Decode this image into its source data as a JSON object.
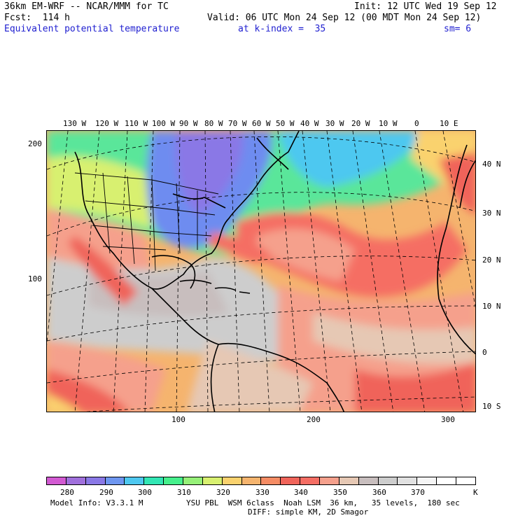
{
  "header": {
    "model": "36km EM-WRF -- NCAR/MMM for TC",
    "init": "Init: 12 UTC Wed 19 Sep 12",
    "fcst": "Fcst:  114 h",
    "valid": "Valid: 06 UTC Mon 24 Sep 12 (00 MDT Mon 24 Sep 12)",
    "field": "Equivalent potential temperature",
    "level": "at k-index =  35",
    "smoothing": "sm= 6"
  },
  "map": {
    "lon_labels": [
      "130 W",
      "120 W",
      "110 W",
      "100 W",
      "90 W",
      "80 W",
      "70 W",
      "60 W",
      "50 W",
      "40 W",
      "30 W",
      "20 W",
      "10 W",
      "0",
      "10 E"
    ],
    "lat_labels": [
      "40 N",
      "30 N",
      "20 N",
      "10 N",
      "0",
      "10 S"
    ],
    "y_grid_labels": [
      "200",
      "100"
    ],
    "x_grid_labels": [
      "100",
      "200",
      "300"
    ]
  },
  "colorbar": {
    "colors": [
      "#d25ad2",
      "#a070dc",
      "#8a78e6",
      "#6e96f0",
      "#4ec8f0",
      "#32e6b4",
      "#46f08c",
      "#96f078",
      "#d8f070",
      "#fad26e",
      "#f5b46e",
      "#f58c64",
      "#f0645a",
      "#f56e64",
      "#f5a08c",
      "#e6c8b4",
      "#c8bebe",
      "#cdcdcd",
      "#e1e1e1",
      "#f5f5f5",
      "#ffffff",
      "#ffffff"
    ],
    "labels": [
      "280",
      "290",
      "300",
      "310",
      "320",
      "330",
      "340",
      "350",
      "360",
      "370"
    ],
    "unit": "K"
  },
  "footer": {
    "model_info": "Model Info: V3.3.1 M",
    "physics": "YSU PBL  WSM 6class  Noah LSM  36 km,   35 levels,  180 sec",
    "diffusion": "DIFF: simple KM, 2D Smagor"
  }
}
